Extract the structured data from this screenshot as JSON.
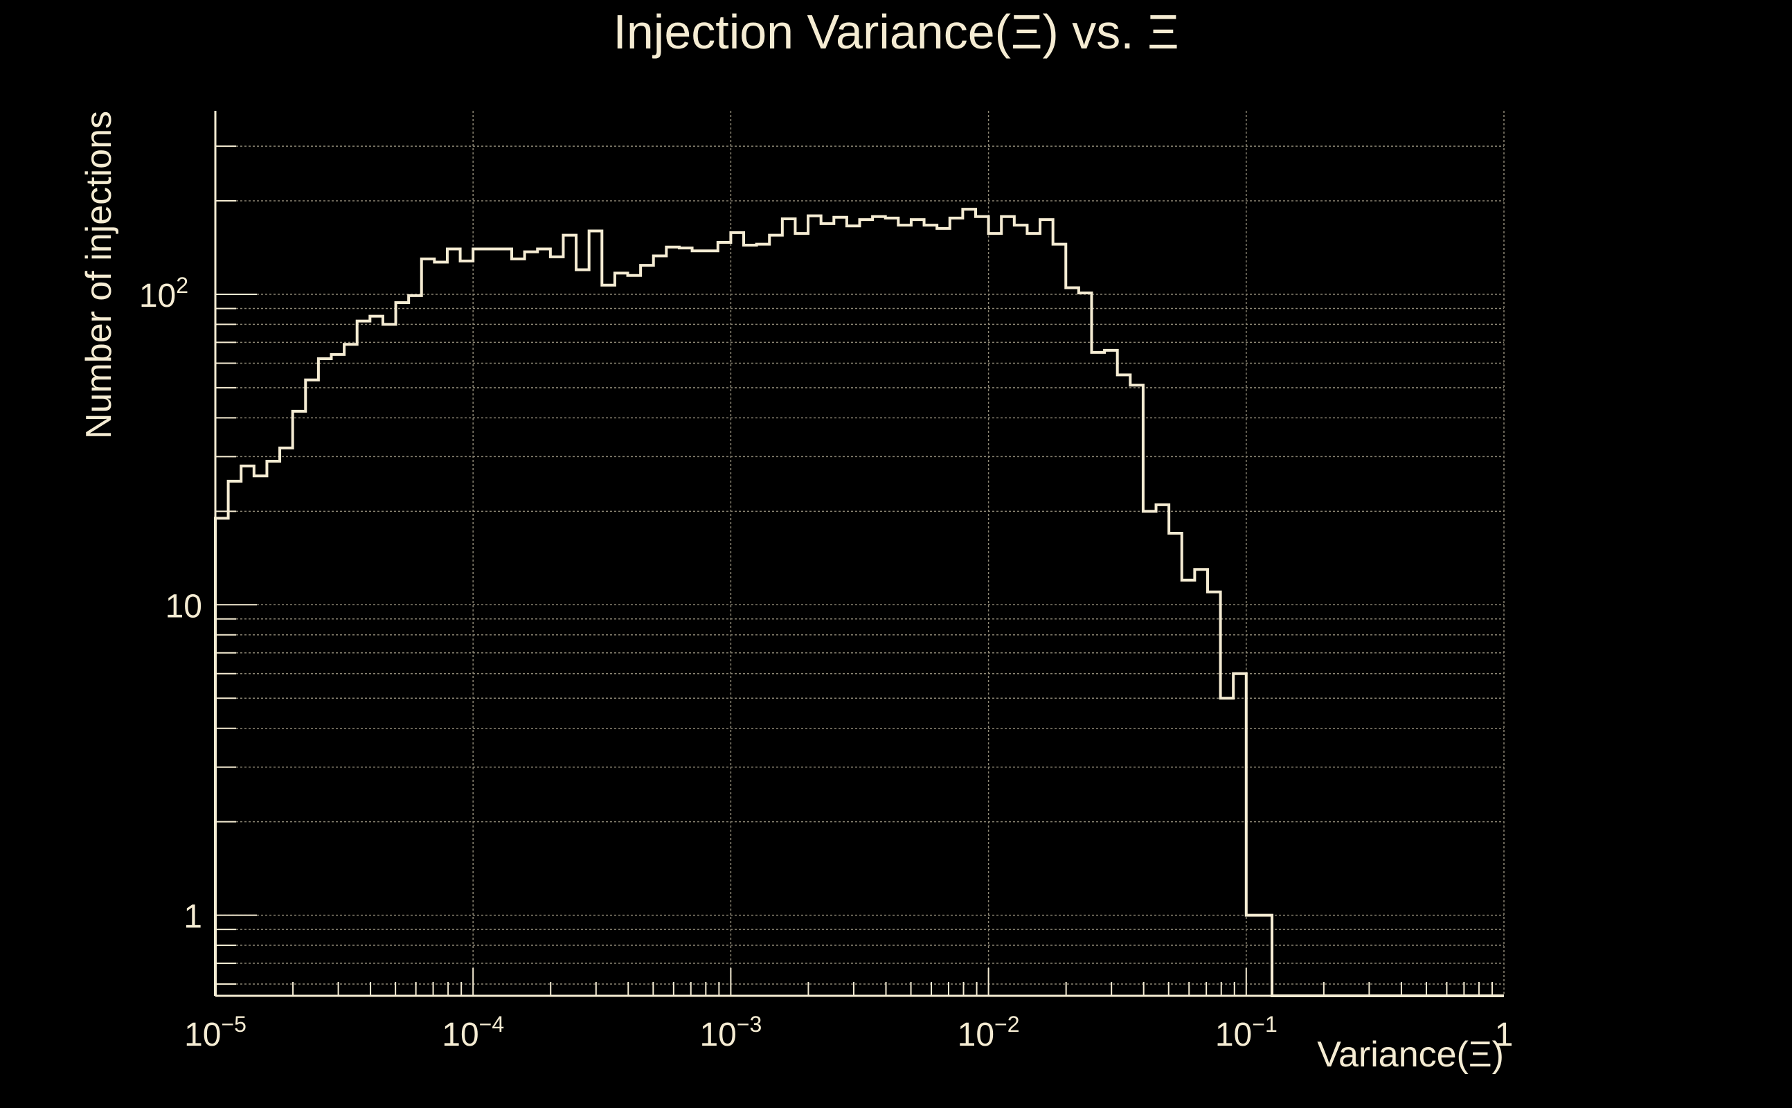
{
  "chart_data": {
    "type": "histogram",
    "title": "Injection Variance(Ξ) vs. Ξ",
    "xlabel": "Variance(Ξ)",
    "ylabel": "Number of injections",
    "x_scale": "log",
    "y_scale": "log",
    "xlim": [
      1e-05,
      1
    ],
    "ylim": [
      0.55,
      390
    ],
    "grid": true,
    "x_ticks": [
      {
        "value": 1e-05,
        "base": "10",
        "exp": "−5"
      },
      {
        "value": 0.0001,
        "base": "10",
        "exp": "−4"
      },
      {
        "value": 0.001,
        "base": "10",
        "exp": "−3"
      },
      {
        "value": 0.01,
        "base": "10",
        "exp": "−2"
      },
      {
        "value": 0.1,
        "base": "10",
        "exp": "−1"
      },
      {
        "value": 1,
        "base": "1",
        "exp": ""
      }
    ],
    "y_ticks": [
      {
        "value": 1,
        "base": "1",
        "exp": ""
      },
      {
        "value": 10,
        "base": "10",
        "exp": ""
      },
      {
        "value": 100,
        "base": "10",
        "exp": "2"
      }
    ],
    "n_bins": 100,
    "bin_counts": [
      19,
      25,
      28,
      26,
      29,
      32,
      42,
      53,
      62,
      64,
      69,
      82,
      85,
      80,
      94,
      99,
      130,
      127,
      140,
      128,
      140,
      140,
      140,
      130,
      137,
      140,
      132,
      155,
      120,
      160,
      107,
      117,
      115,
      124,
      133,
      142,
      141,
      138,
      138,
      147,
      158,
      144,
      145,
      155,
      175,
      157,
      179,
      169,
      177,
      166,
      174,
      178,
      176,
      167,
      174,
      167,
      163,
      176,
      188,
      178,
      157,
      178,
      167,
      157,
      174,
      145,
      105,
      101,
      65,
      66,
      55,
      51,
      20,
      21,
      17,
      12,
      13,
      11,
      5,
      6,
      1,
      1,
      0,
      0,
      0,
      0,
      0,
      0,
      0,
      0,
      0,
      0,
      0,
      0,
      0,
      0,
      0,
      0,
      0,
      0
    ],
    "colors": {
      "background": "#000000",
      "foreground": "#f5ecd3",
      "grid": "#8c8674"
    }
  }
}
